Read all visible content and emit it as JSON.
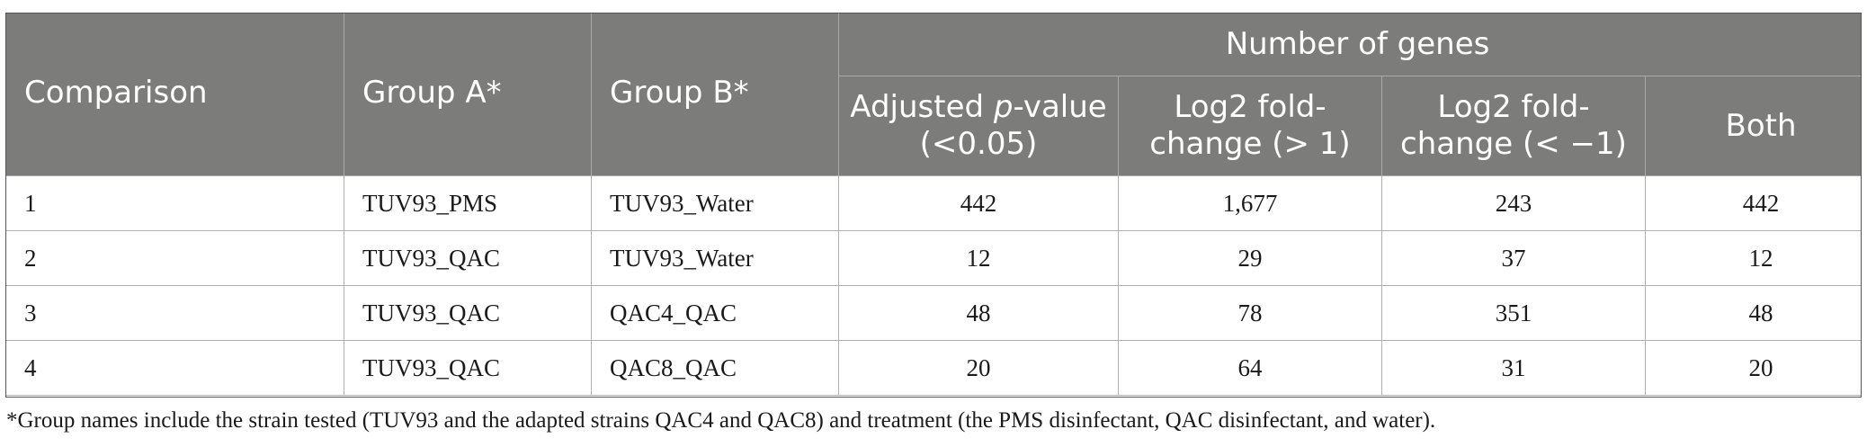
{
  "table": {
    "headers": {
      "comparison": "Comparison",
      "group_a": "Group A*",
      "group_b": "Group B*",
      "number_of_genes": "Number of genes",
      "adjusted_prefix": "Adjusted ",
      "adjusted_p": "p",
      "adjusted_suffix": "-value (<0.05)",
      "log2_up": "Log2 fold-change (> 1)",
      "log2_down": "Log2 fold-change (< −1)",
      "both": "Both"
    },
    "rows": [
      {
        "comparison": "1",
        "group_a": "TUV93_PMS",
        "group_b": "TUV93_Water",
        "adjusted": "442",
        "log2_up": "1,677",
        "log2_down": "243",
        "both": "442"
      },
      {
        "comparison": "2",
        "group_a": "TUV93_QAC",
        "group_b": "TUV93_Water",
        "adjusted": "12",
        "log2_up": "29",
        "log2_down": "37",
        "both": "12"
      },
      {
        "comparison": "3",
        "group_a": "TUV93_QAC",
        "group_b": "QAC4_QAC",
        "adjusted": "48",
        "log2_up": "78",
        "log2_down": "351",
        "both": "48"
      },
      {
        "comparison": "4",
        "group_a": "TUV93_QAC",
        "group_b": "QAC8_QAC",
        "adjusted": "20",
        "log2_up": "64",
        "log2_down": "31",
        "both": "20"
      }
    ]
  },
  "footnote": "*Group names include the strain tested (TUV93 and the adapted strains QAC4 and QAC8) and treatment (the PMS disinfectant, QAC disinfectant, and water).",
  "colors": {
    "header_background": "#7c7c7b",
    "header_text": "#ffffff"
  }
}
